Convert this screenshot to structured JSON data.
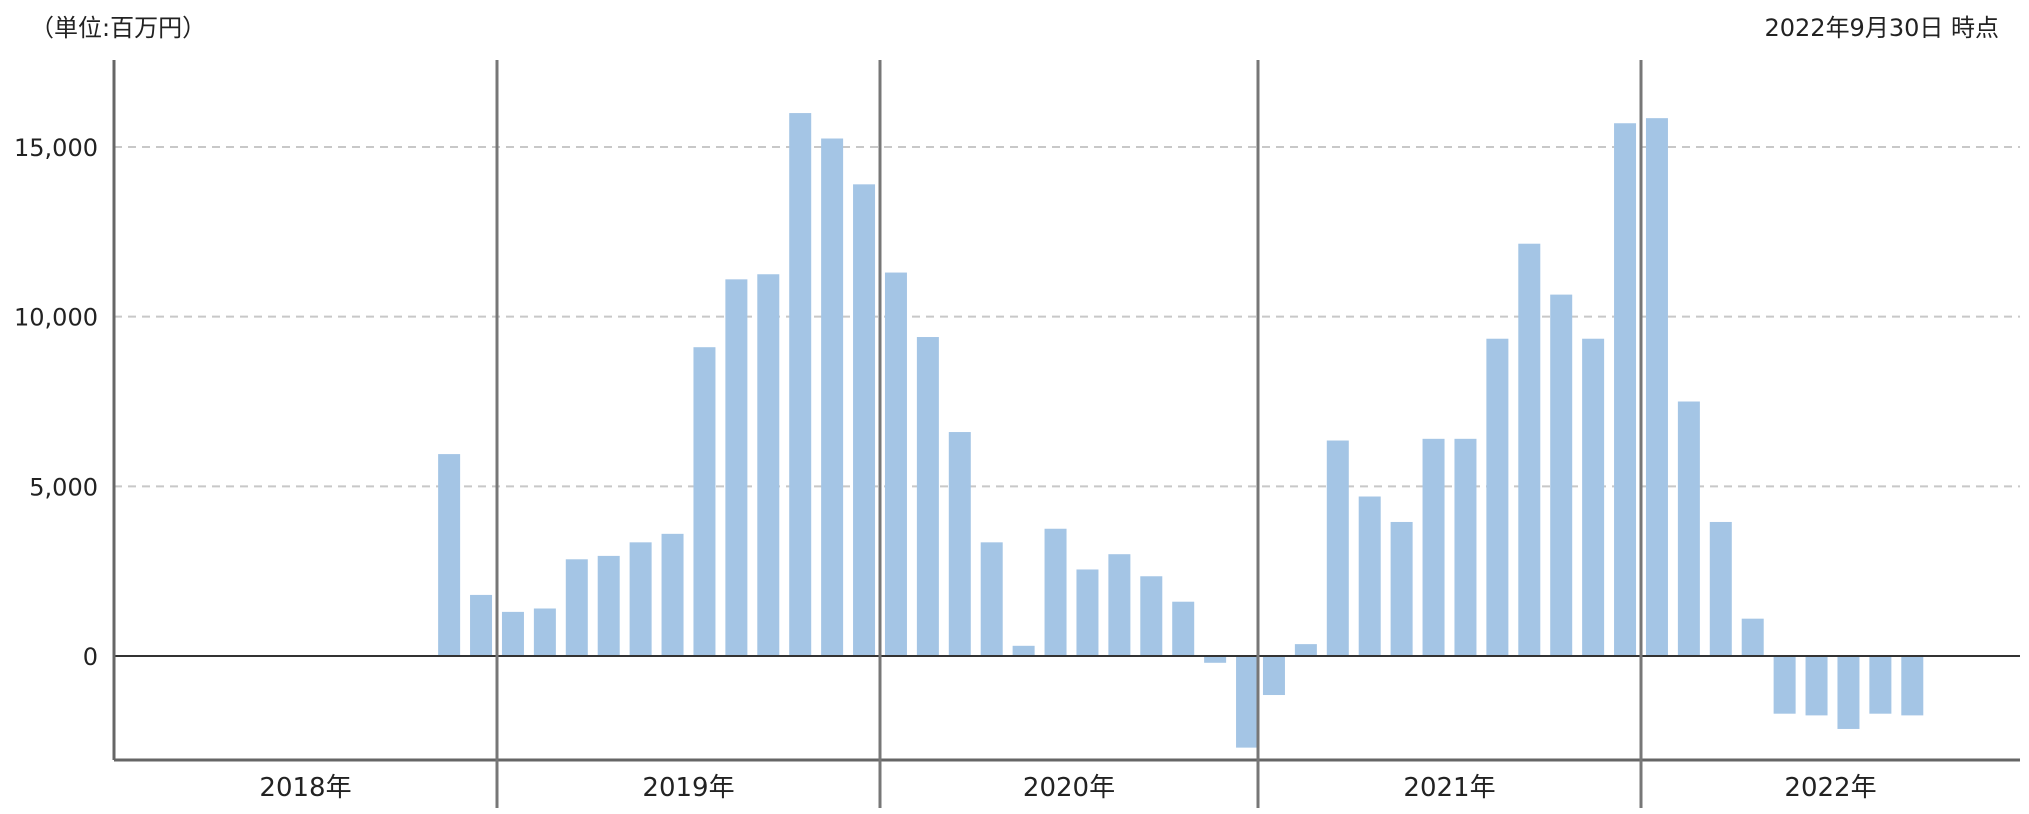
{
  "unit_label": "（単位:百万円）",
  "as_of_label": "2022年9月30日 時点",
  "chart_data": {
    "type": "bar",
    "ylim": [
      -2800,
      17500
    ],
    "yticks": [
      0,
      5000,
      10000,
      15000
    ],
    "ytick_labels": [
      "0",
      "5,000",
      "10,000",
      "15,000"
    ],
    "grid": true,
    "bar_color": "#a4c5e5",
    "years": [
      {
        "label": "2018年",
        "values": [
          null,
          null,
          null,
          null,
          null,
          null,
          null,
          null,
          null,
          null,
          5950,
          1800
        ]
      },
      {
        "label": "2019年",
        "values": [
          1300,
          1400,
          2850,
          2950,
          3350,
          3600,
          9100,
          11100,
          11250,
          16000,
          15250,
          13900
        ]
      },
      {
        "label": "2020年",
        "values": [
          11300,
          9400,
          6600,
          3350,
          300,
          3750,
          2550,
          3000,
          2350,
          1600,
          -200,
          -2700
        ]
      },
      {
        "label": "2021年",
        "values": [
          -1150,
          350,
          6350,
          4700,
          3950,
          6400,
          6400,
          9350,
          12150,
          10650,
          9350,
          15700
        ]
      },
      {
        "label": "2022年",
        "values": [
          15850,
          7500,
          3950,
          1100,
          -1700,
          -1750,
          -2150,
          -1700,
          -1750
        ]
      }
    ]
  }
}
